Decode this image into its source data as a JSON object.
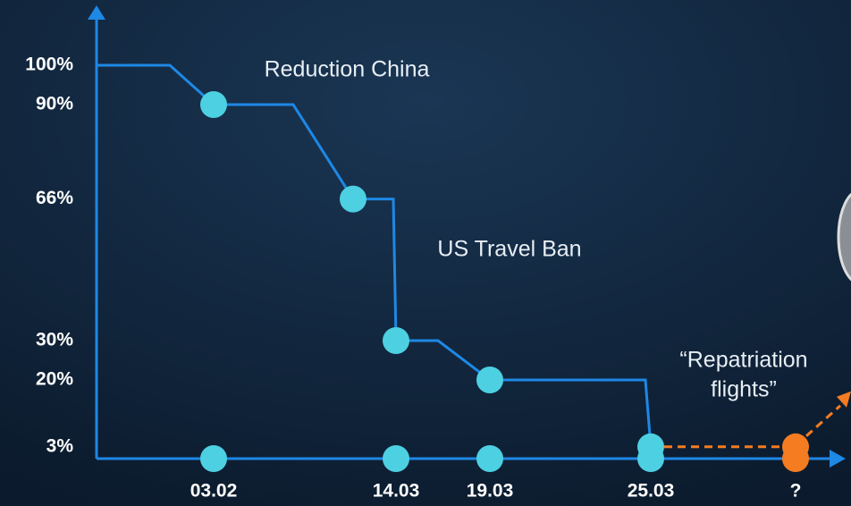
{
  "chart_data": {
    "type": "step",
    "categories": [
      null,
      "03.02",
      null,
      "14.03",
      "19.03",
      "25.03",
      "?"
    ],
    "series": [
      {
        "color": "#1e88e5",
        "values": [
          100,
          90,
          66,
          30,
          20,
          3,
          null
        ]
      },
      {
        "color": "#f57c20",
        "values": [
          null,
          null,
          null,
          null,
          null,
          3,
          3
        ]
      }
    ],
    "ylim": [
      0,
      100
    ],
    "yticks": [
      {
        "value": 100,
        "label": "100%"
      },
      {
        "value": 90,
        "label": "90%"
      },
      {
        "value": 66,
        "label": "66%"
      },
      {
        "value": 30,
        "label": "30%"
      },
      {
        "value": 20,
        "label": "20%"
      },
      {
        "value": 3,
        "label": "3%"
      }
    ],
    "annotations": [
      "Reduction China",
      "US Travel Ban",
      "“Repatriation",
      "flights”"
    ]
  }
}
